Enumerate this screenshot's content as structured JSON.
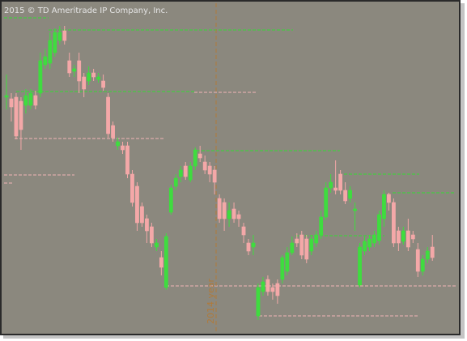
{
  "chart_data": {
    "type": "candlestick",
    "title": "2015 © TD Ameritrade IP Company, Inc.",
    "annotation": "2014 year",
    "up_color": "#3fdc3f",
    "down_color": "#f4a8a8",
    "ylim": [
      0,
      406
    ],
    "open": [
      290,
      288,
      290,
      285,
      280,
      280,
      292,
      295,
      330,
      332,
      345,
      360,
      372,
      335,
      322,
      335,
      315,
      310,
      320,
      312,
      310,
      290,
      255,
      230,
      230,
      230,
      195,
      180,
      155,
      140,
      130,
      105,
      92,
      55,
      148,
      180,
      192,
      205,
      188,
      205,
      220,
      210,
      205,
      200,
      165,
      160,
      140,
      152,
      145,
      130,
      110,
      105,
      20,
      50,
      65,
      55,
      60,
      65,
      75,
      98,
      115,
      120,
      115,
      100,
      110,
      120,
      142,
      178,
      178,
      195,
      175,
      165,
      150,
      58,
      100,
      105,
      110,
      113,
      140,
      170,
      160,
      125,
      112,
      125,
      120,
      102,
      75,
      90,
      105
    ],
    "high": [
      318,
      295,
      295,
      290,
      300,
      300,
      298,
      345,
      350,
      370,
      375,
      378,
      378,
      345,
      330,
      345,
      320,
      328,
      325,
      320,
      318,
      295,
      260,
      240,
      235,
      235,
      200,
      185,
      160,
      145,
      135,
      115,
      100,
      122,
      182,
      195,
      205,
      210,
      210,
      228,
      230,
      218,
      210,
      205,
      170,
      165,
      160,
      160,
      150,
      135,
      115,
      120,
      60,
      68,
      70,
      60,
      65,
      95,
      105,
      118,
      122,
      125,
      120,
      120,
      125,
      150,
      185,
      195,
      212,
      200,
      185,
      180,
      160,
      110,
      118,
      120,
      125,
      150,
      175,
      172,
      165,
      130,
      130,
      140,
      125,
      110,
      95,
      105,
      120
    ],
    "low": [
      275,
      260,
      238,
      225,
      270,
      275,
      275,
      290,
      325,
      325,
      340,
      355,
      355,
      315,
      315,
      295,
      290,
      305,
      310,
      308,
      298,
      240,
      235,
      225,
      220,
      190,
      155,
      125,
      130,
      110,
      105,
      100,
      70,
      52,
      145,
      175,
      185,
      188,
      185,
      200,
      210,
      195,
      185,
      170,
      135,
      125,
      130,
      135,
      130,
      110,
      95,
      95,
      15,
      45,
      45,
      40,
      35,
      60,
      70,
      95,
      105,
      90,
      85,
      95,
      105,
      115,
      138,
      172,
      170,
      170,
      158,
      160,
      125,
      55,
      95,
      100,
      105,
      108,
      130,
      150,
      105,
      100,
      108,
      100,
      110,
      68,
      70,
      85,
      88
    ],
    "close": [
      292,
      278,
      242,
      250,
      292,
      295,
      280,
      335,
      340,
      360,
      370,
      370,
      360,
      320,
      325,
      310,
      300,
      320,
      315,
      315,
      302,
      245,
      240,
      235,
      225,
      195,
      160,
      135,
      135,
      125,
      110,
      110,
      80,
      118,
      178,
      190,
      200,
      192,
      205,
      225,
      215,
      200,
      195,
      185,
      140,
      140,
      150,
      140,
      140,
      120,
      100,
      110,
      55,
      62,
      50,
      50,
      45,
      92,
      98,
      110,
      110,
      95,
      90,
      115,
      120,
      142,
      178,
      185,
      175,
      175,
      162,
      175,
      152,
      105,
      112,
      115,
      120,
      145,
      170,
      160,
      110,
      110,
      125,
      105,
      115,
      75,
      90,
      100,
      92
    ],
    "levels": [
      {
        "value": 388,
        "color": "#33dd33"
      },
      {
        "value": 373,
        "color": "#33dd33"
      },
      {
        "value": 297,
        "color": "#33dd33"
      },
      {
        "value": 296,
        "color": "#f2b5b5"
      },
      {
        "value": 239,
        "color": "#f2b5b5"
      },
      {
        "value": 194,
        "color": "#f2b5b5"
      },
      {
        "value": 184,
        "color": "#f2b5b5"
      },
      {
        "value": 224,
        "color": "#33dd33"
      },
      {
        "value": 195,
        "color": "#33dd33"
      },
      {
        "value": 172,
        "color": "#33dd33"
      },
      {
        "value": 119,
        "color": "#33dd33"
      },
      {
        "value": 57,
        "color": "#f2b5b5"
      },
      {
        "value": 20,
        "color": "#f2b5b5"
      }
    ]
  }
}
